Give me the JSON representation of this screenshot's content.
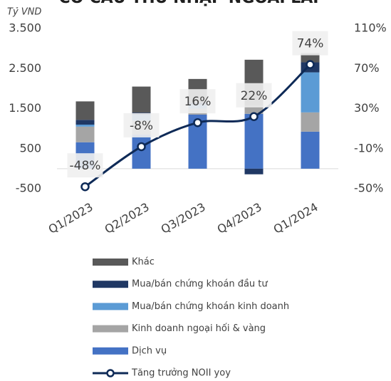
{
  "chart_data": {
    "type": "bar",
    "title": "CƠ CẤU THU NHẬP NGOÀI LÃI",
    "y_label": "Tỷ VND",
    "categories": [
      "Q1/2023",
      "Q2/2023",
      "Q3/2023",
      "Q4/2023",
      "Q1/2024"
    ],
    "stacked": true,
    "series": [
      {
        "name": "Dịch vụ",
        "color": "#4472c4",
        "values": [
          660,
          850,
          1350,
          1370,
          925
        ]
      },
      {
        "name": "Kinh doanh ngoại hối & vàng",
        "color": "#a5a5a5",
        "values": [
          390,
          350,
          150,
          200,
          480
        ]
      },
      {
        "name": "Mua/bán chứng khoán kinh doanh",
        "color": "#5b9bd5",
        "values": [
          50,
          150,
          100,
          0,
          1000
        ]
      },
      {
        "name": "Mua/bán chứng khoán đầu tư",
        "color": "#203864",
        "values": [
          120,
          50,
          50,
          -140,
          250
        ]
      },
      {
        "name": "Khác",
        "color": "#595959",
        "values": [
          460,
          650,
          590,
          1150,
          230
        ]
      },
      {
        "name": "Tăng trưởng NOII yoy",
        "type": "line",
        "axis": "y2",
        "color": "#0e2a57",
        "values": [
          -48,
          -8,
          16,
          22,
          74
        ],
        "value_labels": [
          "-48%",
          "-8%",
          "16%",
          "22%",
          "74%"
        ]
      }
    ],
    "ylim": [
      -500,
      3500
    ],
    "yticks": [
      -500,
      500,
      {
        "value": 1500,
        "label": "1.500"
      },
      {
        "value": 2500,
        "label": "2.500"
      },
      {
        "value": 3500,
        "label": "3.500"
      }
    ],
    "y2lim": [
      -50,
      110
    ],
    "y2ticks": [
      {
        "value": -50,
        "label": "-50%"
      },
      {
        "value": -10,
        "label": "-10%"
      },
      {
        "value": 30,
        "label": "30%"
      },
      {
        "value": 70,
        "label": "70%"
      },
      {
        "value": 110,
        "label": "110%"
      }
    ],
    "legend": "bottom"
  }
}
